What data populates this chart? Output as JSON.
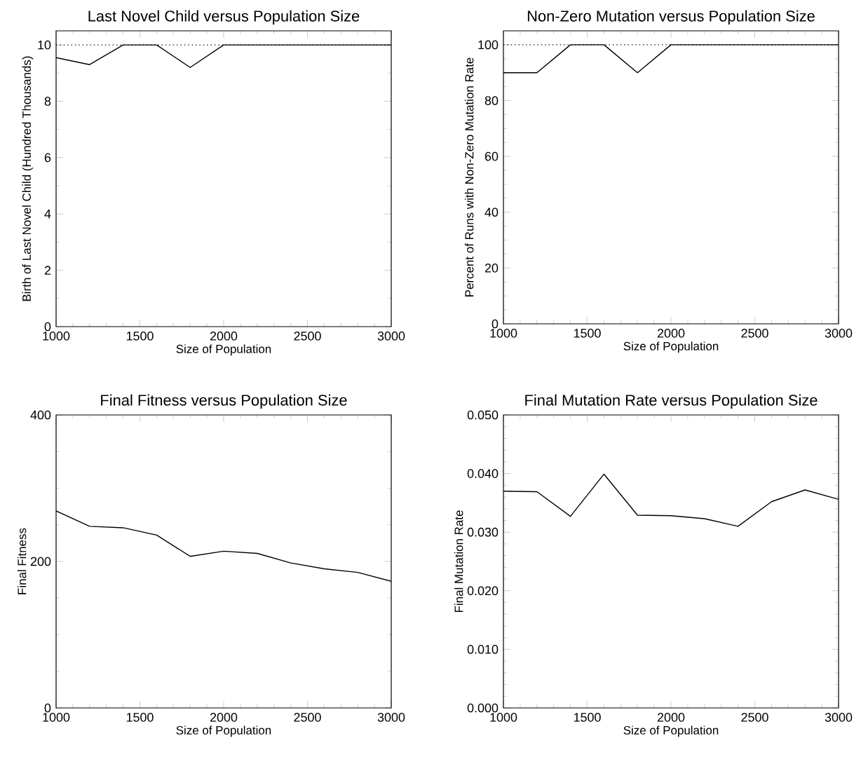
{
  "chart_data": [
    {
      "type": "line",
      "title": "Last Novel Child versus Population Size",
      "xlabel": "Size of Population",
      "ylabel": "Birth of Last Novel Child (Hundred Thousands)",
      "x": [
        1000,
        1200,
        1400,
        1600,
        1800,
        2000,
        2200,
        2400,
        2600,
        2800,
        3000
      ],
      "values": [
        9.55,
        9.3,
        10,
        10,
        9.2,
        10,
        10,
        10,
        10,
        10,
        10
      ],
      "color": "#000000",
      "xlim": [
        1000,
        3000
      ],
      "xticks": [
        1000,
        1500,
        2000,
        2500,
        3000
      ],
      "ylim": [
        0,
        10.5
      ],
      "yticks": [
        0,
        2,
        4,
        6,
        8,
        10
      ],
      "ref_lines": [
        {
          "axis": "y",
          "value": 10,
          "line_style": "dotted",
          "color": "#000000"
        }
      ]
    },
    {
      "type": "line",
      "title": "Non-Zero Mutation versus Population Size",
      "xlabel": "Size of Population",
      "ylabel": "Percent of Runs with Non-Zero Mutation Rate",
      "x": [
        1000,
        1200,
        1400,
        1600,
        1800,
        2000,
        2200,
        2400,
        2600,
        2800,
        3000
      ],
      "values": [
        90,
        90,
        100,
        100,
        90,
        100,
        100,
        100,
        100,
        100,
        100
      ],
      "color": "#000000",
      "xlim": [
        1000,
        3000
      ],
      "xticks": [
        1000,
        1500,
        2000,
        2500,
        3000
      ],
      "ylim": [
        0,
        105
      ],
      "yticks": [
        0,
        20,
        40,
        60,
        80,
        100
      ],
      "ref_lines": [
        {
          "axis": "y",
          "value": 100,
          "line_style": "dotted",
          "color": "#000000"
        }
      ]
    },
    {
      "type": "line",
      "title": "Final Fitness versus Population Size",
      "xlabel": "Size of Population",
      "ylabel": "Final Fitness",
      "x": [
        1000,
        1200,
        1400,
        1600,
        1800,
        2000,
        2200,
        2400,
        2600,
        2800,
        3000
      ],
      "values": [
        269,
        248,
        246,
        236,
        207,
        214,
        211,
        198,
        190,
        185,
        173
      ],
      "color": "#000000",
      "xlim": [
        1000,
        3000
      ],
      "xticks": [
        1000,
        1500,
        2000,
        2500,
        3000
      ],
      "ylim": [
        0,
        400
      ],
      "yticks": [
        0,
        200,
        400
      ]
    },
    {
      "type": "line",
      "title": "Final Mutation Rate versus Population Size",
      "xlabel": "Size of Population",
      "ylabel": "Final Mutation Rate",
      "x": [
        1000,
        1200,
        1400,
        1600,
        1800,
        2000,
        2200,
        2400,
        2600,
        2800,
        3000
      ],
      "values": [
        0.037,
        0.0369,
        0.0327,
        0.0399,
        0.0329,
        0.0328,
        0.0323,
        0.031,
        0.0352,
        0.0372,
        0.0356
      ],
      "color": "#000000",
      "xlim": [
        1000,
        3000
      ],
      "xticks": [
        1000,
        1500,
        2000,
        2500,
        3000
      ],
      "ylim": [
        0,
        0.05
      ],
      "yticks": [
        {
          "value": 0,
          "label": "0.000"
        },
        {
          "value": 0.01,
          "label": "0.010"
        },
        {
          "value": 0.02,
          "label": "0.020"
        },
        {
          "value": 0.03,
          "label": "0.030"
        },
        {
          "value": 0.04,
          "label": "0.040"
        },
        {
          "value": 0.05,
          "label": "0.050"
        }
      ]
    }
  ]
}
